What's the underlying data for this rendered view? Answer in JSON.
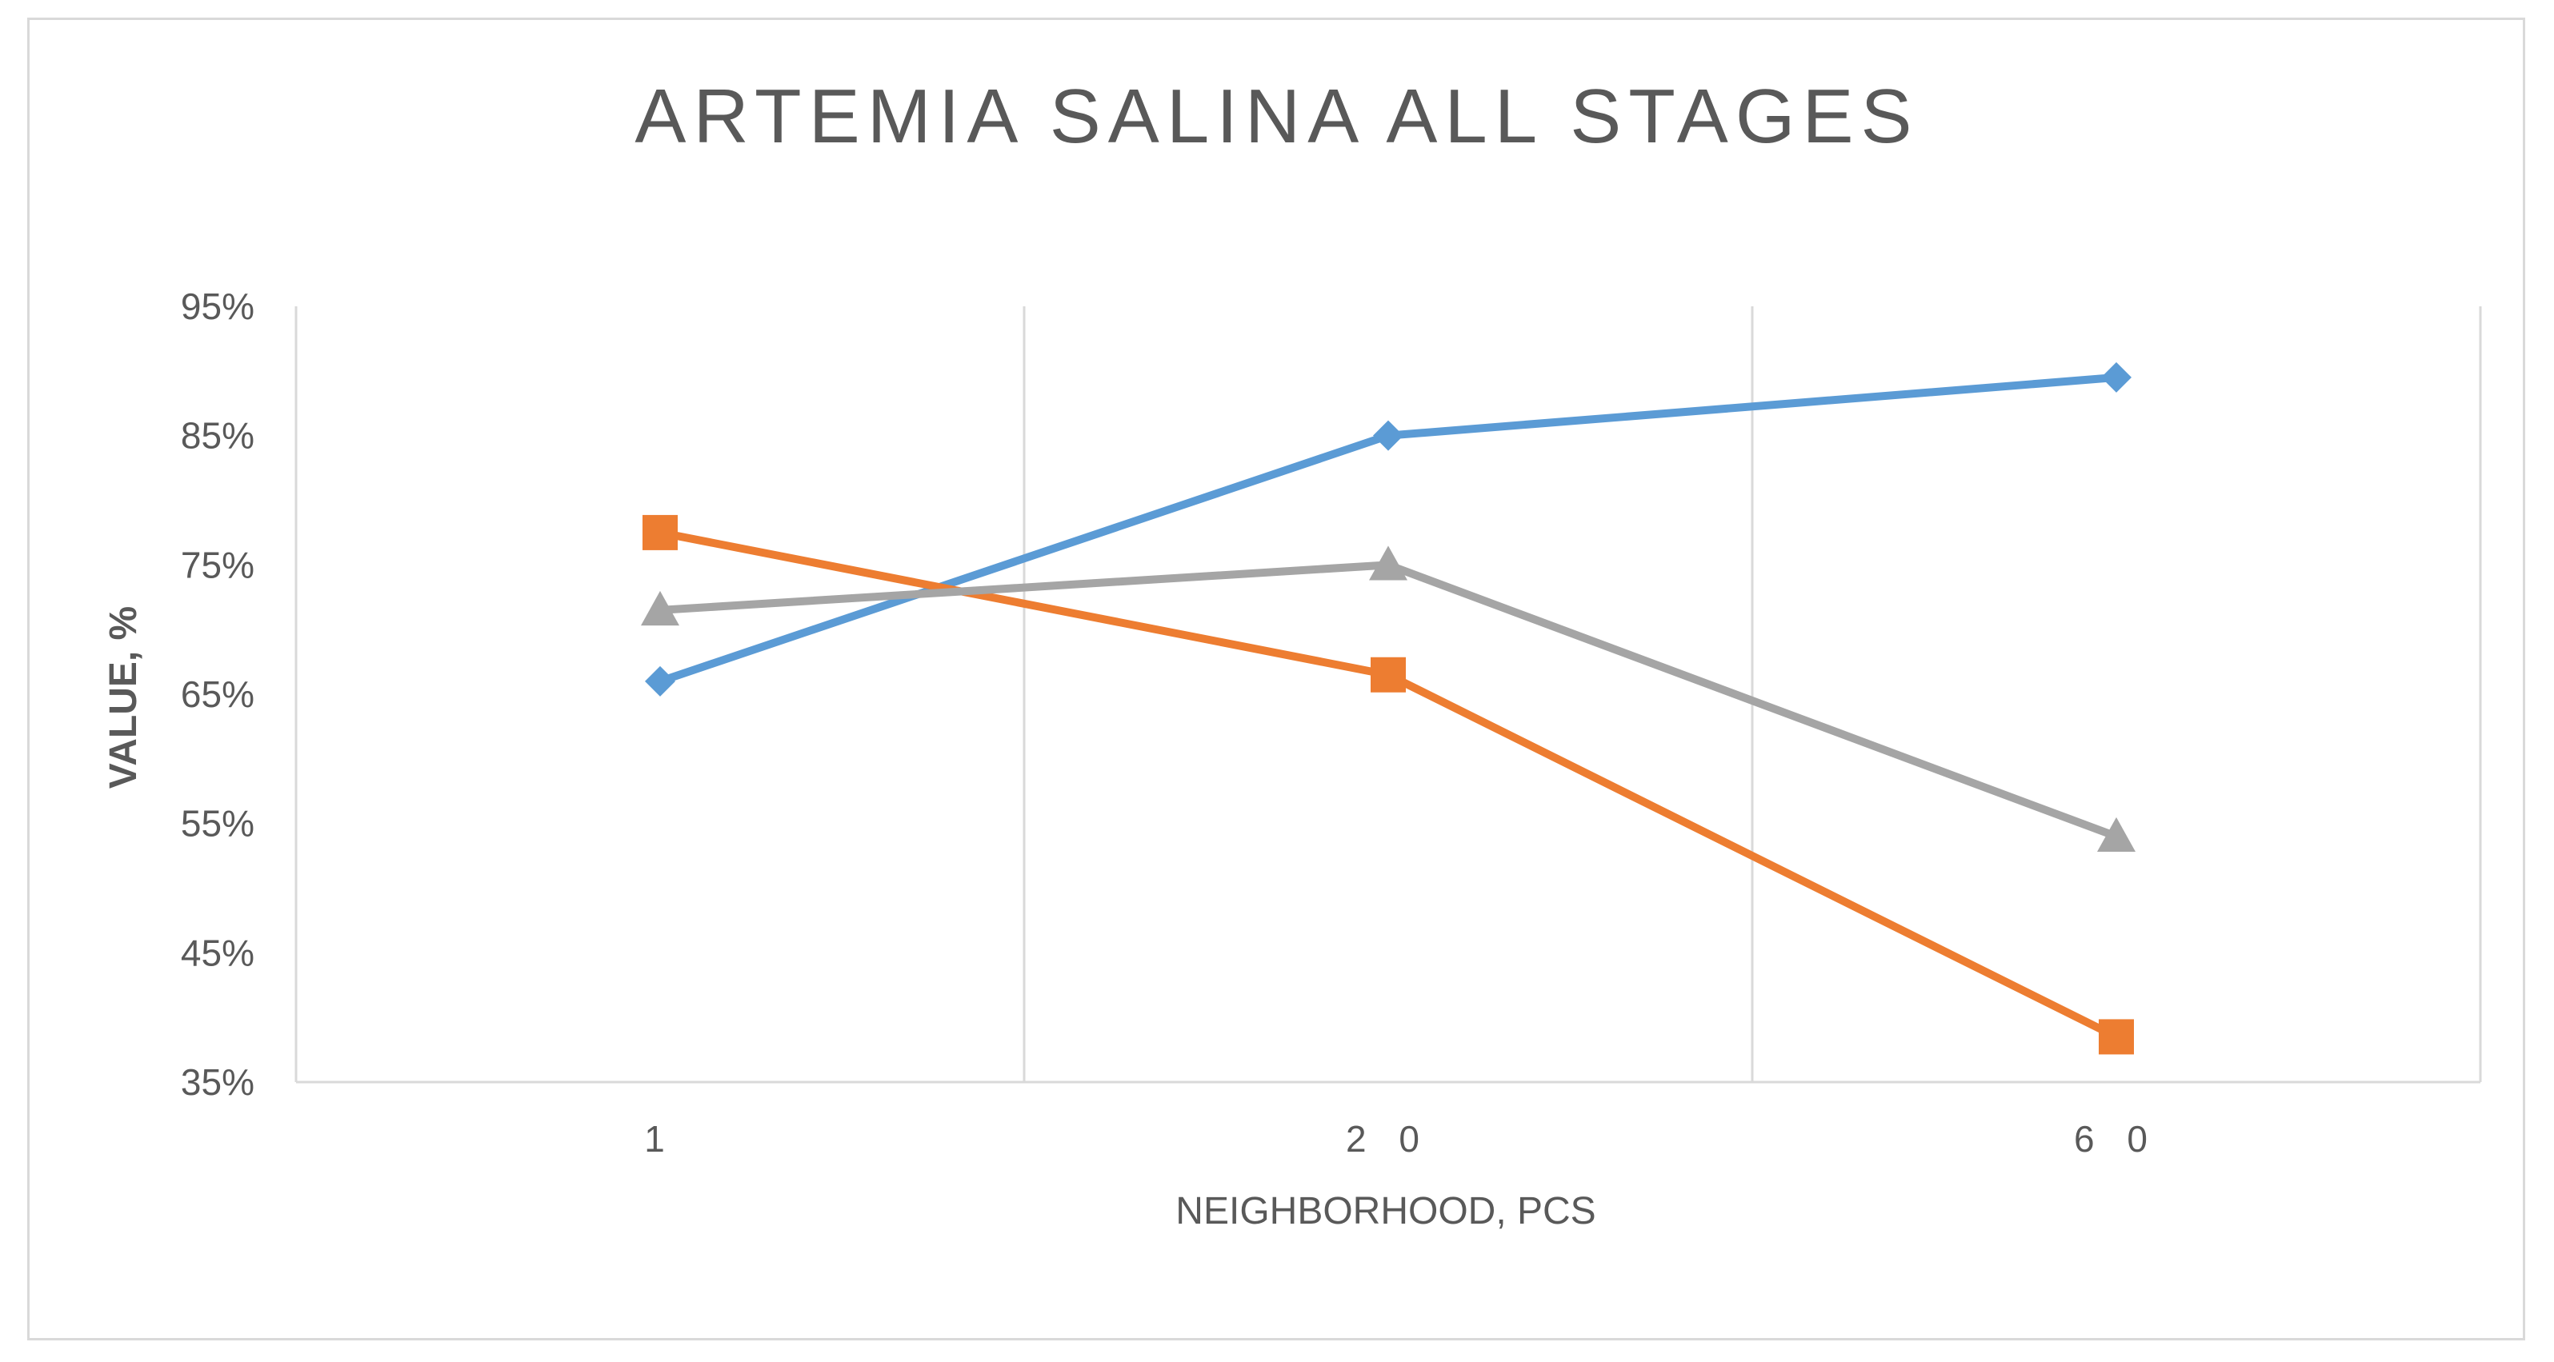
{
  "chart_data": {
    "type": "line",
    "title": "ARTEMIA SALINA ALL STAGES",
    "xlabel": "NEIGHBORHOOD, PCS",
    "ylabel": "VALUE, %",
    "categories": [
      "1",
      "20",
      "60"
    ],
    "ylim": [
      35,
      95
    ],
    "yticks": [
      "95%",
      "85%",
      "75%",
      "65%",
      "55%",
      "45%",
      "35%"
    ],
    "ytick_values": [
      95,
      85,
      75,
      65,
      55,
      45,
      35
    ],
    "grid": "vertical",
    "legend": "none",
    "series": [
      {
        "values": [
          66,
          85,
          89.5
        ],
        "color": "#5b9bd5",
        "marker": "diamond"
      },
      {
        "values": [
          77.5,
          66.5,
          38.5
        ],
        "color": "#ed7d31",
        "marker": "square"
      },
      {
        "values": [
          71.5,
          75,
          54
        ],
        "color": "#a5a5a5",
        "marker": "triangle"
      }
    ]
  }
}
